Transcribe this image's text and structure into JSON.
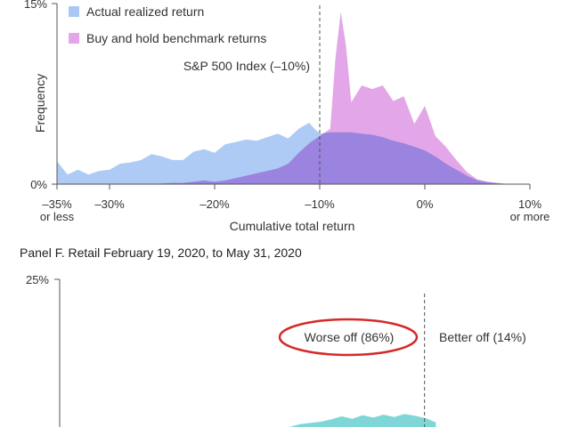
{
  "chart_data": [
    {
      "type": "area",
      "panel": "top",
      "xlabel": "Cumulative total return",
      "ylabel": "Frequency",
      "xlim": [
        -35,
        10
      ],
      "ylim": [
        0,
        15
      ],
      "ytick_labels": [
        "0%",
        "15%"
      ],
      "xtick_labels": [
        {
          "value": -35,
          "label": "–35%",
          "sub": "or less"
        },
        {
          "value": -30,
          "label": "–30%",
          "sub": ""
        },
        {
          "value": -20,
          "label": "–20%",
          "sub": ""
        },
        {
          "value": -10,
          "label": "–10%",
          "sub": ""
        },
        {
          "value": 0,
          "label": "0%",
          "sub": ""
        },
        {
          "value": 10,
          "label": "10%",
          "sub": "or more"
        }
      ],
      "reference_line": {
        "x": -10,
        "label": "S&P 500 Index (–10%)"
      },
      "legend": {
        "position": "top-left"
      },
      "series": [
        {
          "name": "Actual realized return",
          "color": "#a9c8f5",
          "x": [
            -35,
            -34,
            -33,
            -32,
            -31,
            -30,
            -29,
            -28,
            -27,
            -26,
            -25,
            -24,
            -23,
            -22,
            -21,
            -20,
            -19,
            -18,
            -17,
            -16,
            -15,
            -14,
            -13,
            -12,
            -11,
            -10.5,
            -10,
            -9,
            -8,
            -7,
            -6,
            -5,
            -4,
            -3,
            -2,
            -1,
            0,
            1,
            2,
            3,
            4,
            5,
            6,
            7,
            8,
            9,
            10
          ],
          "values": [
            1.9,
            0.8,
            1.2,
            0.8,
            1.1,
            1.2,
            1.7,
            1.8,
            2.0,
            2.5,
            2.3,
            2.0,
            2.0,
            2.7,
            2.9,
            2.6,
            3.3,
            3.5,
            3.7,
            3.6,
            3.9,
            4.2,
            3.8,
            4.6,
            5.1,
            4.6,
            4.2,
            4.3,
            4.3,
            4.3,
            4.2,
            4.1,
            3.9,
            3.6,
            3.4,
            3.1,
            2.8,
            2.3,
            1.7,
            1.2,
            0.7,
            0.3,
            0.15,
            0.05,
            0,
            0,
            0
          ]
        },
        {
          "name": "Buy and hold benchmark returns",
          "color": "#e3a6e8",
          "x": [
            -35,
            -34,
            -33,
            -32,
            -31,
            -30,
            -29,
            -28,
            -27,
            -26,
            -25,
            -24,
            -23,
            -22,
            -21,
            -20,
            -19,
            -18,
            -17,
            -16,
            -15,
            -14,
            -13,
            -12,
            -11,
            -10,
            -9,
            -8.5,
            -8,
            -7.5,
            -7,
            -6,
            -5,
            -4,
            -3,
            -2,
            -1,
            0,
            1,
            2,
            3,
            4,
            5,
            6,
            7,
            8,
            9,
            10
          ],
          "values": [
            0,
            0,
            0,
            0,
            0,
            0,
            0,
            0,
            0,
            0,
            0.05,
            0.1,
            0.1,
            0.2,
            0.3,
            0.2,
            0.3,
            0.5,
            0.7,
            0.9,
            1.1,
            1.3,
            1.7,
            2.6,
            3.4,
            4.0,
            4.6,
            10.5,
            14.3,
            11.5,
            6.8,
            8.2,
            7.9,
            8.2,
            6.9,
            7.3,
            5.0,
            6.5,
            4.0,
            3.1,
            2.0,
            1.0,
            0.4,
            0.2,
            0.1,
            0,
            0,
            0
          ]
        }
      ]
    },
    {
      "type": "area",
      "panel": "bottom",
      "title": "Panel F. Retail February 19, 2020, to May 31, 2020",
      "ylim": [
        0,
        25
      ],
      "ytick_labels": [
        "25%"
      ],
      "reference_line": {
        "x": 0
      },
      "annotations": {
        "left": "Worse off (86%)",
        "right": "Better off (14%)"
      },
      "series": [
        {
          "color": "#7fd6d6",
          "x": [
            -35,
            -13,
            -12,
            -10,
            -9,
            -8,
            -7,
            -6,
            -5,
            -4,
            -3,
            -2,
            -1,
            0,
            1
          ],
          "values": [
            0,
            0,
            0.5,
            0.9,
            1.3,
            1.8,
            1.4,
            2.0,
            1.6,
            2.1,
            1.7,
            2.2,
            1.9,
            1.5,
            0.8
          ]
        }
      ]
    }
  ]
}
